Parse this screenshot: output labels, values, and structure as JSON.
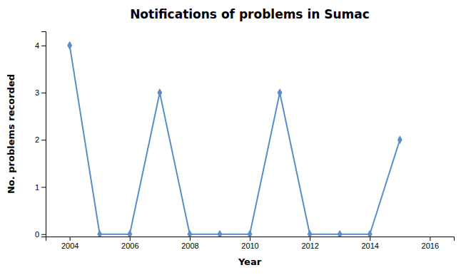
{
  "chart_data": {
    "type": "line",
    "title": "Notifications of problems in Sumac",
    "xlabel": "Year",
    "ylabel": "No. problems recorded",
    "x": [
      2004,
      2005,
      2006,
      2007,
      2008,
      2009,
      2010,
      2011,
      2012,
      2013,
      2014,
      2015
    ],
    "values": [
      4,
      0,
      0,
      3,
      0,
      0,
      0,
      3,
      0,
      0,
      0,
      2
    ],
    "color": "#5b8dc8",
    "marker": "diamond",
    "xlim": [
      2003.2,
      2016.8
    ],
    "ylim": [
      -0.05,
      4.3
    ],
    "xticks": [
      2004,
      2006,
      2008,
      2010,
      2012,
      2014,
      2016
    ],
    "yticks": [
      0,
      1,
      2,
      3,
      4
    ],
    "grid": false
  }
}
